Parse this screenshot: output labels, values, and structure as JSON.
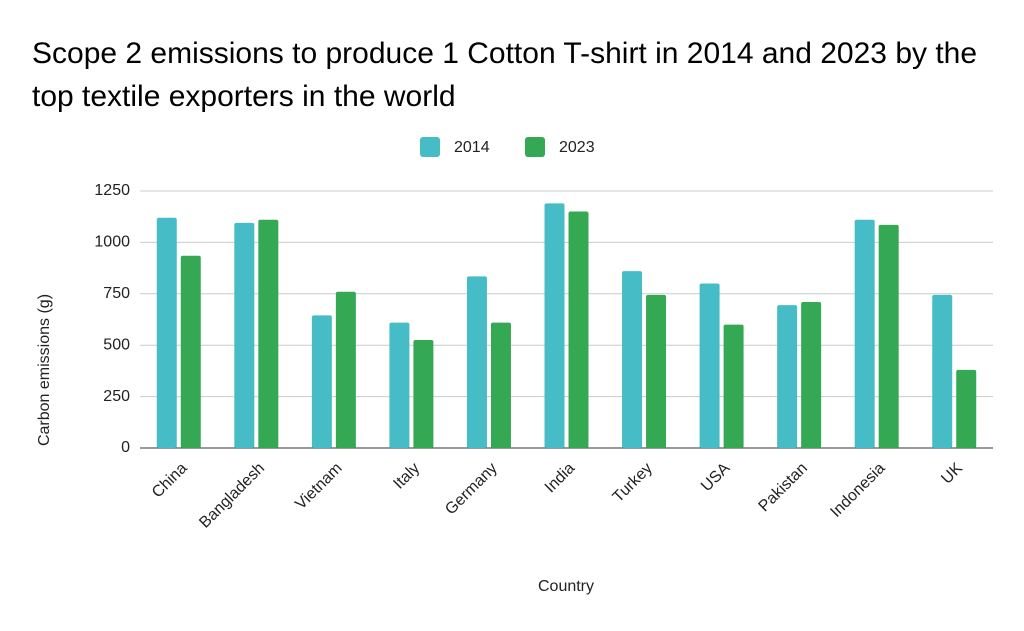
{
  "chart_data": {
    "type": "bar",
    "title": "Scope 2 emissions to produce 1 Cotton T-shirt in 2014 and 2023 by the top textile exporters in the world",
    "x_label": "Country",
    "y_label": "Carbon emissions (g)",
    "categories": [
      "China",
      "Bangladesh",
      "Vietnam",
      "Italy",
      "Germany",
      "India",
      "Turkey",
      "USA",
      "Pakistan",
      "Indonesia",
      "UK"
    ],
    "series": [
      {
        "name": "2014",
        "color": "#46bdc6",
        "values": [
          1120,
          1095,
          645,
          610,
          835,
          1190,
          860,
          800,
          695,
          1110,
          745
        ]
      },
      {
        "name": "2023",
        "color": "#34a853",
        "values": [
          935,
          1110,
          760,
          525,
          610,
          1150,
          745,
          600,
          710,
          1085,
          380
        ]
      }
    ],
    "ylim": [
      0,
      1250
    ],
    "yticks": [
      0,
      250,
      500,
      750,
      1000,
      1250
    ],
    "grid": true,
    "legend": "top"
  }
}
